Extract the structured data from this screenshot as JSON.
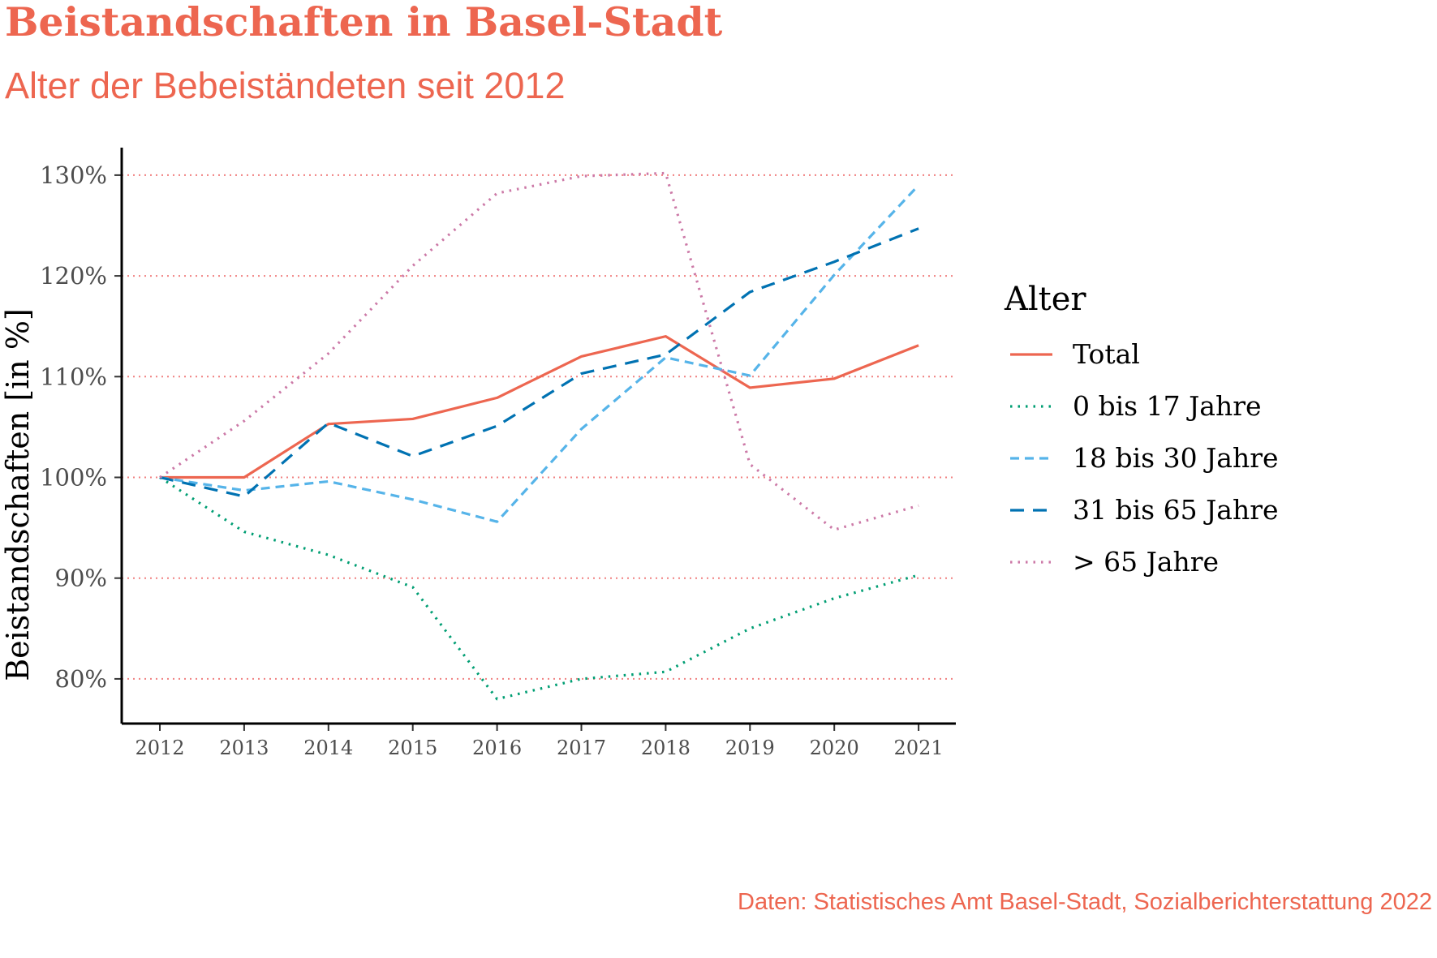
{
  "header": {
    "title": "Beistandschaften in Basel-Stadt",
    "subtitle": "Alter der Bebeiständeten seit 2012"
  },
  "caption": "Daten: Statistisches Amt Basel-Stadt, Sozialberichterstattung 2022",
  "colors": {
    "accent": "#ed6650",
    "grid": "#f08080",
    "axis": "#000000"
  },
  "chart_data": {
    "type": "line",
    "title": "Beistandschaften in Basel-Stadt",
    "subtitle": "Alter der Bebeiständeten seit 2012",
    "xlabel": "",
    "ylabel": "Beistandschaften [in %]",
    "x": [
      2012,
      2013,
      2014,
      2015,
      2016,
      2017,
      2018,
      2019,
      2020,
      2021
    ],
    "ylim": [
      75.5,
      132.5
    ],
    "yticks": [
      80,
      90,
      100,
      110,
      120,
      130
    ],
    "ytick_labels": [
      "80%",
      "90%",
      "100%",
      "110%",
      "120%",
      "130%"
    ],
    "grid": "horizontal dotted",
    "legend": {
      "title": "Alter",
      "position": "right"
    },
    "series": [
      {
        "name": "Total",
        "color": "#ed6650",
        "dash": "solid",
        "values": [
          100,
          100,
          105.3,
          105.8,
          107.9,
          112,
          114,
          108.9,
          109.8,
          113.1
        ]
      },
      {
        "name": "0 bis 17 Jahre",
        "color": "#009e73",
        "dash": "dotted",
        "values": [
          100,
          94.6,
          92.3,
          89.1,
          78,
          80,
          80.7,
          85,
          88,
          90.3
        ]
      },
      {
        "name": "18 bis 30 Jahre",
        "color": "#56b4e9",
        "dash": "dashed",
        "values": [
          100,
          98.7,
          99.6,
          97.8,
          95.6,
          104.8,
          111.9,
          110.1,
          120.1,
          129
        ]
      },
      {
        "name": "31 bis 65 Jahre",
        "color": "#0072b2",
        "dash": "longdash",
        "values": [
          100,
          98.1,
          105.4,
          102.1,
          105.1,
          110.3,
          112.2,
          118.4,
          121.4,
          124.7
        ]
      },
      {
        "name": "> 65 Jahre",
        "color": "#cc79a7",
        "dash": "dotted",
        "values": [
          100,
          105.6,
          112.3,
          121,
          128.2,
          129.9,
          130.2,
          101.3,
          94.8,
          97.2
        ]
      }
    ]
  }
}
